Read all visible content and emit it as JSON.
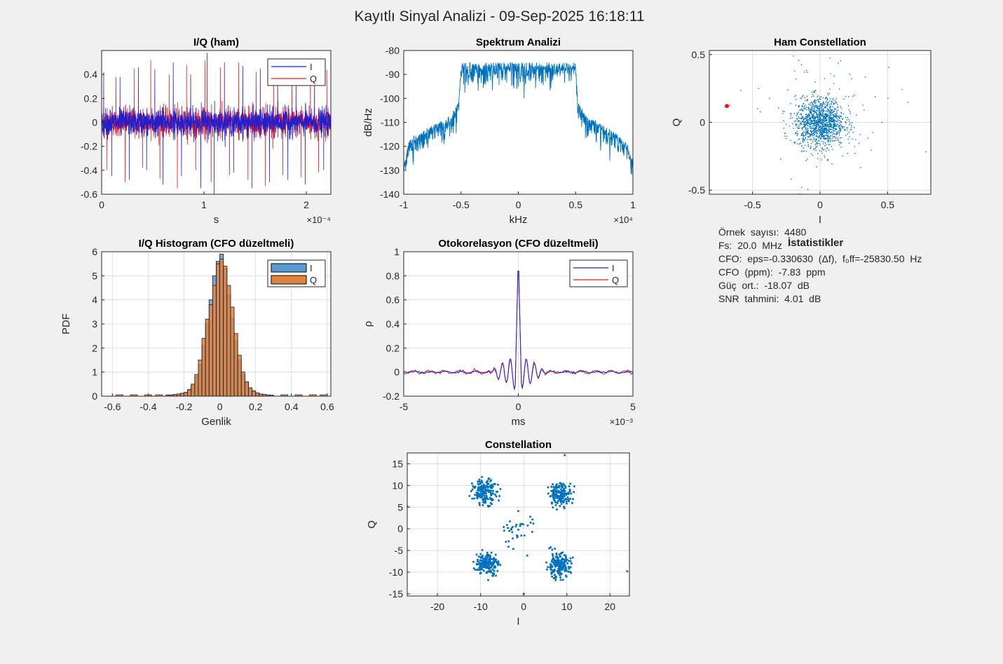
{
  "figure": {
    "title": "Kayıtlı Sinyal Analizi - 09-Sep-2025 16:18:11",
    "background": "#f0f0f0"
  },
  "colors": {
    "I": "#1f1fd0",
    "Q": "#e8171d",
    "scatter": "#0072bd",
    "hist_I": "#5b9bd5",
    "hist_Q": "#e0833f",
    "marker": "#e8171d"
  },
  "stats": {
    "title": "İstatistikler",
    "lines": [
      "Örnek  sayısı:  4480",
      "Fs:  20.0  MHz",
      "CFO:  eps=-0.330630  (Δf),  f₀ff=-25830.50  Hz",
      "CFO  (ppm):  -7.83  ppm",
      "Güç  ort.:  -18.07  dB",
      "SNR  tahmini:  4.01  dB"
    ]
  },
  "chart_data": [
    {
      "id": "iq_raw",
      "type": "line",
      "title": "I/Q (ham)",
      "xlabel": "s",
      "ylabel": "",
      "x_multiplier": "×10⁻⁴",
      "xlim": [
        0,
        2.24
      ],
      "ylim": [
        -0.6,
        0.6
      ],
      "xticks": [
        0,
        1,
        2
      ],
      "xticklabels": [
        "0",
        "1",
        "2"
      ],
      "yticks": [
        -0.6,
        -0.4,
        -0.2,
        0,
        0.2,
        0.4
      ],
      "yticklabels": [
        "-0.6",
        "-0.4",
        "-0.2",
        "0",
        "0.2",
        "0.4"
      ],
      "grid": false,
      "legend": "top-right",
      "series": [
        {
          "name": "I",
          "spikes": [
            [
              0.02,
              0.42
            ],
            [
              0.1,
              -0.45
            ],
            [
              0.18,
              0.38
            ],
            [
              0.27,
              -0.48
            ],
            [
              0.36,
              0.46
            ],
            [
              0.44,
              -0.4
            ],
            [
              0.52,
              0.44
            ],
            [
              0.6,
              -0.52
            ],
            [
              0.7,
              0.5
            ],
            [
              0.78,
              -0.45
            ],
            [
              0.87,
              0.4
            ],
            [
              0.97,
              -0.55
            ],
            [
              1.03,
              0.58
            ],
            [
              1.1,
              -0.6
            ],
            [
              1.2,
              0.5
            ],
            [
              1.29,
              -0.42
            ],
            [
              1.38,
              0.47
            ],
            [
              1.47,
              -0.55
            ],
            [
              1.55,
              0.45
            ],
            [
              1.64,
              -0.5
            ],
            [
              1.72,
              0.42
            ],
            [
              1.82,
              -0.48
            ],
            [
              1.9,
              0.43
            ],
            [
              1.99,
              -0.52
            ],
            [
              2.08,
              0.45
            ],
            [
              2.17,
              -0.4
            ]
          ]
        },
        {
          "name": "Q",
          "spikes": [
            [
              0.05,
              -0.4
            ],
            [
              0.14,
              0.38
            ],
            [
              0.23,
              -0.5
            ],
            [
              0.32,
              0.45
            ],
            [
              0.4,
              -0.38
            ],
            [
              0.48,
              0.52
            ],
            [
              0.57,
              -0.47
            ],
            [
              0.66,
              0.4
            ],
            [
              0.74,
              -0.55
            ],
            [
              0.83,
              0.48
            ],
            [
              0.92,
              -0.4
            ],
            [
              1.01,
              0.52
            ],
            [
              1.07,
              -0.5
            ],
            [
              1.16,
              0.46
            ],
            [
              1.25,
              -0.44
            ],
            [
              1.34,
              0.5
            ],
            [
              1.43,
              -0.48
            ],
            [
              1.51,
              0.42
            ],
            [
              1.6,
              -0.53
            ],
            [
              1.68,
              0.46
            ],
            [
              1.77,
              -0.44
            ],
            [
              1.86,
              0.5
            ],
            [
              1.95,
              -0.46
            ],
            [
              2.04,
              0.48
            ],
            [
              2.12,
              -0.42
            ],
            [
              2.2,
              0.44
            ]
          ]
        }
      ]
    },
    {
      "id": "spectrum",
      "type": "line",
      "title": "Spektrum Analizi",
      "xlabel": "kHz",
      "ylabel": "dB/Hz",
      "x_multiplier": "×10⁴",
      "xlim": [
        -1,
        1
      ],
      "ylim": [
        -140,
        -80
      ],
      "xticks": [
        -1,
        -0.5,
        0,
        0.5,
        1
      ],
      "xticklabels": [
        "-1",
        "-0.5",
        "0",
        "0.5",
        "1"
      ],
      "yticks": [
        -140,
        -130,
        -120,
        -110,
        -100,
        -90,
        -80
      ],
      "yticklabels": [
        "-140",
        "-130",
        "-120",
        "-110",
        "-100",
        "-90",
        "-80"
      ],
      "grid": false,
      "series": [
        {
          "name": "",
          "envelope": [
            [
              -1,
              -130
            ],
            [
              -0.95,
              -118
            ],
            [
              -0.8,
              -114
            ],
            [
              -0.6,
              -109
            ],
            [
              -0.52,
              -103
            ],
            [
              -0.5,
              -86
            ],
            [
              0,
              -86
            ],
            [
              0.5,
              -86
            ],
            [
              0.52,
              -103
            ],
            [
              0.6,
              -109
            ],
            [
              0.8,
              -114
            ],
            [
              0.95,
              -120
            ],
            [
              1,
              -127
            ]
          ]
        }
      ]
    },
    {
      "id": "raw_constellation",
      "type": "scatter",
      "title": "Ham Constellation",
      "xlabel": "I",
      "ylabel": "Q",
      "xlim": [
        -0.82,
        0.82
      ],
      "ylim": [
        -0.53,
        0.53
      ],
      "xticks": [
        -0.5,
        0,
        0.5
      ],
      "xticklabels": [
        "-0.5",
        "0",
        "0.5"
      ],
      "yticks": [
        -0.5,
        0,
        0.5
      ],
      "yticklabels": [
        "-0.5",
        "0",
        "0.5"
      ],
      "grid": true,
      "series": [
        {
          "name": "",
          "center": [
            0,
            0
          ],
          "spread": 0.09,
          "count": 4480
        }
      ],
      "highlight_point": [
        -0.69,
        0.12
      ]
    },
    {
      "id": "histogram",
      "type": "bar",
      "title": "I/Q Histogram (CFO düzeltmeli)",
      "xlabel": "Genlik",
      "ylabel": "PDF",
      "xlim": [
        -0.66,
        0.62
      ],
      "ylim": [
        0,
        6
      ],
      "xticks": [
        -0.6,
        -0.4,
        -0.2,
        0,
        0.2,
        0.4,
        0.6
      ],
      "xticklabels": [
        "-0.6",
        "-0.4",
        "-0.2",
        "0",
        "0.2",
        "0.4",
        "0.6"
      ],
      "yticks": [
        0,
        1,
        2,
        3,
        4,
        5,
        6
      ],
      "yticklabels": [
        "0",
        "1",
        "2",
        "3",
        "4",
        "5",
        "6"
      ],
      "grid": true,
      "legend": "top-right",
      "bin_edges": [
        -0.3,
        -0.28,
        -0.26,
        -0.24,
        -0.22,
        -0.2,
        -0.18,
        -0.16,
        -0.14,
        -0.12,
        -0.1,
        -0.08,
        -0.06,
        -0.04,
        -0.02,
        0,
        0.02,
        0.04,
        0.06,
        0.08,
        0.1,
        0.12,
        0.14,
        0.16,
        0.18,
        0.2,
        0.22,
        0.24,
        0.26,
        0.28,
        0.3
      ],
      "series": [
        {
          "name": "I",
          "values": [
            0.05,
            0.05,
            0.06,
            0.08,
            0.1,
            0.15,
            0.25,
            0.45,
            0.8,
            1.3,
            2.1,
            3.0,
            4.0,
            5.0,
            5.6,
            5.9,
            5.3,
            4.2,
            3.2,
            2.3,
            1.5,
            0.9,
            0.55,
            0.3,
            0.2,
            0.12,
            0.08,
            0.06,
            0.05,
            0.04
          ]
        },
        {
          "name": "Q",
          "values": [
            0.05,
            0.05,
            0.07,
            0.09,
            0.12,
            0.16,
            0.28,
            0.5,
            0.9,
            1.5,
            2.4,
            3.2,
            3.8,
            4.6,
            5.5,
            5.7,
            5.4,
            4.6,
            3.7,
            2.6,
            1.7,
            1.0,
            0.6,
            0.35,
            0.22,
            0.14,
            0.09,
            0.07,
            0.05,
            0.04
          ]
        }
      ]
    },
    {
      "id": "autocorr",
      "type": "line",
      "title": "Otokorelasyon (CFO düzeltmeli)",
      "xlabel": "ms",
      "ylabel": "ρ",
      "x_multiplier": "×10⁻³",
      "xlim": [
        -5,
        5
      ],
      "ylim": [
        -0.2,
        1
      ],
      "xticks": [
        -5,
        0,
        5
      ],
      "xticklabels": [
        "-5",
        "0",
        "5"
      ],
      "yticks": [
        -0.2,
        0,
        0.2,
        0.4,
        0.6,
        0.8,
        1
      ],
      "yticklabels": [
        "-0.2",
        "0",
        "0.2",
        "0.4",
        "0.6",
        "0.8",
        "1"
      ],
      "grid": true,
      "legend": "top-right",
      "series": [
        {
          "name": "I",
          "peak": 1.0
        },
        {
          "name": "Q",
          "peak": 1.0
        }
      ]
    },
    {
      "id": "constellation",
      "type": "scatter",
      "title": "Constellation",
      "xlabel": "I",
      "ylabel": "Q",
      "xlim": [
        -27,
        24.5
      ],
      "ylim": [
        -15.5,
        17.5
      ],
      "xticks": [
        -20,
        -10,
        0,
        10,
        20
      ],
      "xticklabels": [
        "-20",
        "-10",
        "0",
        "10",
        "20"
      ],
      "yticks": [
        -15,
        -10,
        -5,
        0,
        5,
        10,
        15
      ],
      "yticklabels": [
        "-15",
        "-10",
        "-5",
        "0",
        "5",
        "10",
        "15"
      ],
      "grid": true,
      "clusters": [
        {
          "center": [
            -9,
            8.5
          ],
          "spread": 1.4,
          "count": 170
        },
        {
          "center": [
            8.5,
            8
          ],
          "spread": 1.3,
          "count": 160
        },
        {
          "center": [
            -8.5,
            -8
          ],
          "spread": 1.3,
          "count": 170
        },
        {
          "center": [
            8,
            -8.5
          ],
          "spread": 1.4,
          "count": 180
        },
        {
          "center": [
            -1.5,
            -0.5
          ],
          "spread": 2.2,
          "count": 35
        }
      ],
      "outliers": [
        [
          9.5,
          17
        ],
        [
          24,
          -9.8
        ],
        [
          -27,
          5.2
        ],
        [
          0,
          -15
        ]
      ]
    }
  ]
}
